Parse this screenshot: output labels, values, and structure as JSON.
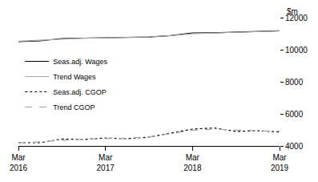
{
  "chart_data": {
    "type": "line",
    "ylabel": "$m",
    "categories": [
      "Mar 2016",
      null,
      null,
      null,
      "Mar 2017",
      null,
      null,
      null,
      "Mar 2018",
      null,
      null,
      null,
      "Mar 2019"
    ],
    "series": [
      {
        "name": "Seas.adj. Wages",
        "color": "#000000",
        "line_style": "solid",
        "values": [
          10500,
          10550,
          10700,
          10730,
          10740,
          10760,
          10790,
          10880,
          11050,
          11060,
          11090,
          11130,
          11180
        ]
      },
      {
        "name": "Trend Wages",
        "color": "#a6a6a6",
        "line_style": "solid",
        "values": [
          10530,
          10600,
          10680,
          10720,
          10740,
          10760,
          10800,
          10880,
          10990,
          11050,
          11090,
          11130,
          11170
        ]
      },
      {
        "name": "Seas.adj. CGOP",
        "color": "#000000",
        "line_style": "dotted",
        "values": [
          4200,
          4200,
          4430,
          4400,
          4490,
          4450,
          4550,
          4800,
          5050,
          5120,
          4900,
          4950,
          4870
        ]
      },
      {
        "name": "Trend CGOP",
        "color": "#a6a6a6",
        "line_style": "dashed",
        "values": [
          4180,
          4270,
          4360,
          4430,
          4460,
          4480,
          4560,
          4760,
          4980,
          5050,
          4980,
          4940,
          4920
        ]
      }
    ],
    "ylim": [
      4000,
      12000
    ],
    "yticks": [
      4000,
      6000,
      8000,
      10000,
      12000
    ],
    "grid": false,
    "legend": "left"
  }
}
